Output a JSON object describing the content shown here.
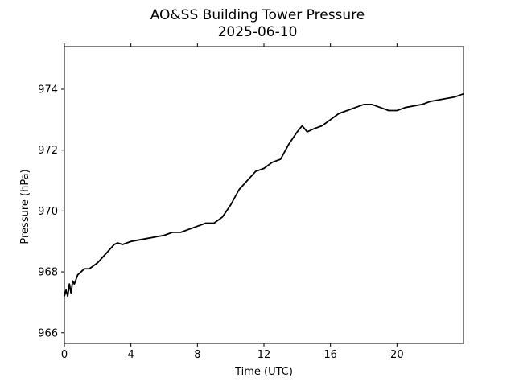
{
  "chart_data": {
    "type": "line",
    "title": "AO&SS Building Tower Pressure",
    "subtitle": "2025-06-10",
    "xlabel": "Time (UTC)",
    "ylabel": "Pressure (hPa)",
    "xlim": [
      0,
      24
    ],
    "ylim": [
      965.65,
      975.4
    ],
    "xticks": [
      0,
      4,
      8,
      12,
      16,
      20
    ],
    "yticks": [
      966,
      968,
      970,
      972,
      974
    ],
    "grid": false,
    "line_color": "#000000",
    "series": [
      {
        "x": [
          0.0,
          0.1,
          0.2,
          0.3,
          0.4,
          0.5,
          0.6,
          0.8,
          1.0,
          1.2,
          1.5,
          2.0,
          2.5,
          3.0,
          3.2,
          3.5,
          4.0,
          4.5,
          5.0,
          5.5,
          6.0,
          6.5,
          7.0,
          7.5,
          8.0,
          8.5,
          9.0,
          9.5,
          10.0,
          10.5,
          11.0,
          11.5,
          12.0,
          12.5,
          13.0,
          13.5,
          14.0,
          14.3,
          14.6,
          15.0,
          15.5,
          16.0,
          16.5,
          17.0,
          17.5,
          18.0,
          18.5,
          19.0,
          19.5,
          20.0,
          20.5,
          21.0,
          21.5,
          22.0,
          22.5,
          23.0,
          23.5,
          24.0
        ],
        "y": [
          967.2,
          967.4,
          967.2,
          967.6,
          967.3,
          967.7,
          967.6,
          967.9,
          968.0,
          968.1,
          968.1,
          968.3,
          968.6,
          968.9,
          968.95,
          968.9,
          969.0,
          969.05,
          969.1,
          969.15,
          969.2,
          969.3,
          969.3,
          969.4,
          969.5,
          969.6,
          969.6,
          969.8,
          970.2,
          970.7,
          971.0,
          971.3,
          971.4,
          971.6,
          971.7,
          972.2,
          972.6,
          972.8,
          972.6,
          972.7,
          972.8,
          973.0,
          973.2,
          973.3,
          973.4,
          973.5,
          973.5,
          973.4,
          973.3,
          973.3,
          973.4,
          973.45,
          973.5,
          973.6,
          973.65,
          973.7,
          973.75,
          973.85
        ]
      }
    ]
  }
}
